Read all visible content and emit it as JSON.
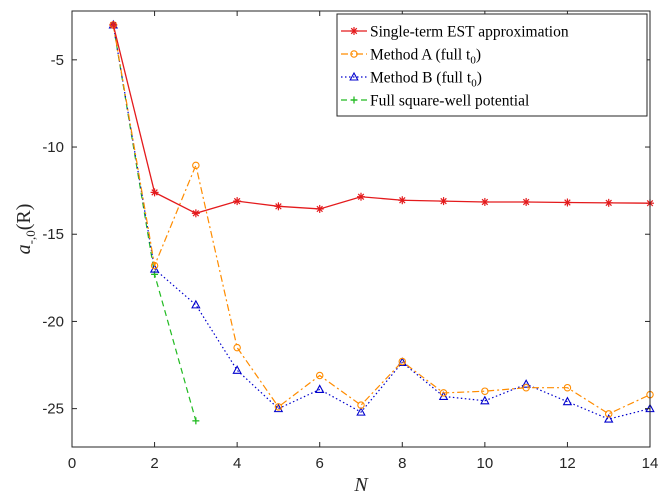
{
  "chart_data": {
    "type": "line",
    "xlabel": "N",
    "ylabel": "a_{-,0}(R)",
    "xlim": [
      0,
      14
    ],
    "ylim": [
      -27.2,
      -2.2
    ],
    "x_ticks": [
      0,
      2,
      4,
      6,
      8,
      10,
      12,
      14
    ],
    "y_ticks": [
      -5,
      -10,
      -15,
      -20,
      -25
    ],
    "grid": false,
    "legend_position": "top-right",
    "series": [
      {
        "name": "Single-term EST approximation",
        "color": "#e41a1c",
        "line_style": "solid",
        "marker": "asterisk",
        "x": [
          1,
          2,
          3,
          4,
          5,
          6,
          7,
          8,
          9,
          10,
          11,
          12,
          13,
          14
        ],
        "y": [
          -3.0,
          -12.6,
          -13.8,
          -13.1,
          -13.4,
          -13.55,
          -12.85,
          -13.05,
          -13.1,
          -13.15,
          -13.15,
          -13.18,
          -13.2,
          -13.22
        ]
      },
      {
        "name": "Method A (full t",
        "name_subscript": "0",
        "name_suffix": ")",
        "color": "#ff8c00",
        "line_style": "dashdot",
        "marker": "circle",
        "x": [
          1,
          2,
          3,
          4,
          5,
          6,
          7,
          8,
          9,
          10,
          11,
          12,
          13,
          14
        ],
        "y": [
          -3.0,
          -16.8,
          -11.05,
          -21.5,
          -24.9,
          -23.1,
          -24.8,
          -22.3,
          -24.1,
          -24.0,
          -23.8,
          -23.8,
          -25.3,
          -24.2
        ]
      },
      {
        "name": "Method B (full t",
        "name_subscript": "0",
        "name_suffix": ")",
        "color": "#0000cd",
        "line_style": "dotted",
        "marker": "triangle",
        "x": [
          1,
          2,
          3,
          4,
          5,
          6,
          7,
          8,
          9,
          10,
          11,
          12,
          13,
          14
        ],
        "y": [
          -3.0,
          -17.0,
          -19.05,
          -22.8,
          -25.0,
          -23.9,
          -25.2,
          -22.35,
          -24.3,
          -24.55,
          -23.6,
          -24.6,
          -25.6,
          -25.0
        ]
      },
      {
        "name": "Full square-well potential",
        "color": "#22bb22",
        "line_style": "dashed",
        "marker": "plus",
        "x": [
          1,
          2,
          3
        ],
        "y": [
          -3.0,
          -17.3,
          -25.7
        ]
      }
    ]
  }
}
